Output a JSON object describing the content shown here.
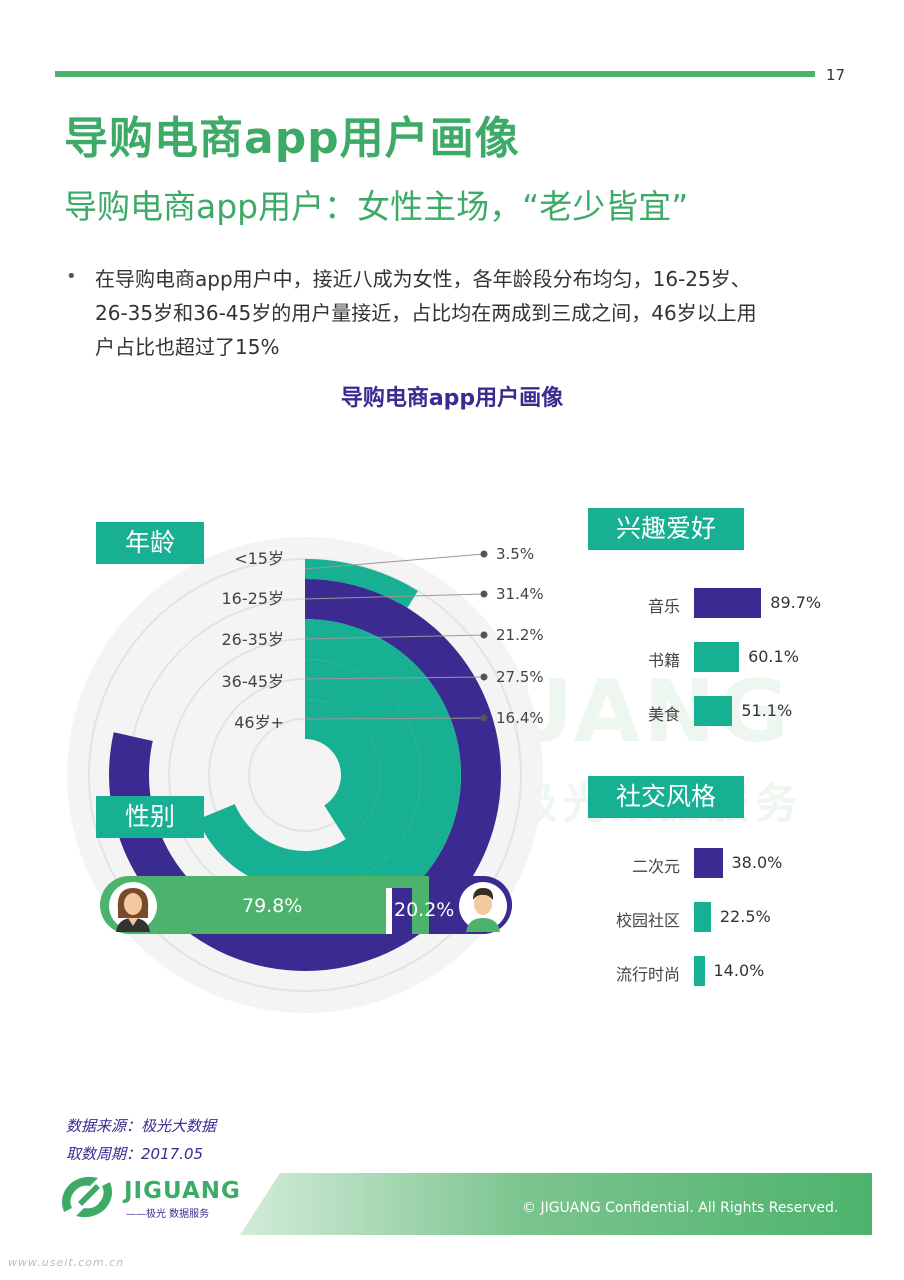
{
  "page_number": "17",
  "title": "导购电商app用户画像",
  "subtitle": "导购电商app用户：女性主场，“老少皆宜”",
  "bullet_marker": "•",
  "bullet_lines": [
    "在导购电商app用户中，接近八成为女性，各年龄段分布均匀，16-25岁、",
    "26-35岁和36-45岁的用户量接近，占比均在两成到三成之间，46岁以上用",
    "户占比也超过了15%"
  ],
  "watermark": {
    "text": "JIGUANG",
    "sub": "极光数据服务"
  },
  "colors": {
    "green": "#3daa67",
    "teal": "#18b093",
    "purple": "#3b2a8f"
  },
  "chart_data": [
    {
      "type": "radial_bar",
      "title": "导购电商app用户画像",
      "group_label": "年龄",
      "categories": [
        "<15岁",
        "16-25岁",
        "26-35岁",
        "36-45岁",
        "46岁+"
      ],
      "values": [
        3.5,
        31.4,
        21.2,
        27.5,
        16.4
      ],
      "value_labels": [
        "3.5%",
        "31.4%",
        "21.2%",
        "27.5%",
        "16.4%"
      ],
      "colors": [
        "#18b093",
        "#3b2a8f",
        "#18b093",
        "#18b093",
        "#18b093"
      ]
    },
    {
      "type": "bar",
      "group_label": "性别",
      "categories": [
        "female",
        "male"
      ],
      "values": [
        79.8,
        20.2
      ],
      "value_labels": [
        "79.8%",
        "20.2%"
      ],
      "colors": [
        "#4db36c",
        "#3b2a8f"
      ],
      "icons": [
        "female-avatar-icon",
        "male-avatar-icon"
      ]
    },
    {
      "type": "bar",
      "group_label": "兴趣爱好",
      "categories": [
        "音乐",
        "书籍",
        "美食"
      ],
      "values": [
        89.7,
        60.1,
        51.1
      ],
      "value_labels": [
        "89.7%",
        "60.1%",
        "51.1%"
      ],
      "colors": [
        "#3b2a8f",
        "#18b093",
        "#18b093"
      ]
    },
    {
      "type": "bar",
      "group_label": "社交风格",
      "categories": [
        "二次元",
        "校园社区",
        "流行时尚"
      ],
      "values": [
        38.0,
        22.5,
        14.0
      ],
      "value_labels": [
        "38.0%",
        "22.5%",
        "14.0%"
      ],
      "colors": [
        "#3b2a8f",
        "#18b093",
        "#18b093"
      ]
    }
  ],
  "source": {
    "line1": "数据来源：极光大数据",
    "line2": "取数周期：2017.05"
  },
  "logo": {
    "text": "JIGUANG",
    "sub": "——极光 数据服务"
  },
  "footer": {
    "copyright": "© JIGUANG Confidential. All Rights Reserved."
  },
  "url_watermark": "www.useit.com.cn"
}
